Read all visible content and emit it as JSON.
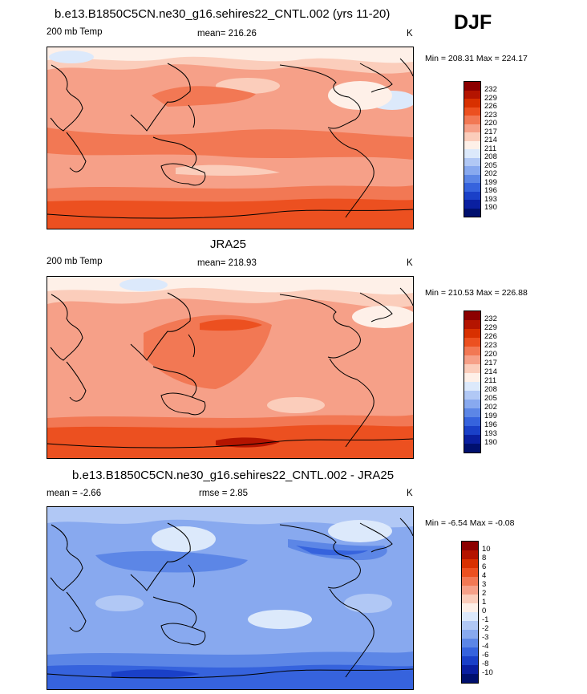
{
  "season": "DJF",
  "panels": [
    {
      "title": "b.e13.B1850C5CN.ne30_g16.sehires22_CNTL.002 (yrs 11-20)",
      "left_label": "200 mb Temp",
      "center_label": "mean= 216.26",
      "units": "K",
      "minmax": "Min = 208.31 Max = 224.17",
      "legend": {
        "labels": [
          "232",
          "229",
          "226",
          "223",
          "220",
          "217",
          "214",
          "211",
          "208",
          "205",
          "202",
          "199",
          "196",
          "193",
          "190"
        ],
        "colors": [
          "#8c0000",
          "#b41400",
          "#d83000",
          "#ec5020",
          "#f27854",
          "#f6a088",
          "#fbcdbb",
          "#fef0e8",
          "#dce9fb",
          "#b1c8f5",
          "#88a9ef",
          "#5c86e6",
          "#3663dd",
          "#1a40c8",
          "#0a1fa0",
          "#00106e"
        ]
      },
      "map_style": "model"
    },
    {
      "title": "JRA25",
      "left_label": "200 mb Temp",
      "center_label": "mean= 218.93",
      "units": "K",
      "minmax": "Min = 210.53 Max = 226.88",
      "legend": {
        "labels": [
          "232",
          "229",
          "226",
          "223",
          "220",
          "217",
          "214",
          "211",
          "208",
          "205",
          "202",
          "199",
          "196",
          "193",
          "190"
        ],
        "colors": [
          "#8c0000",
          "#b41400",
          "#d83000",
          "#ec5020",
          "#f27854",
          "#f6a088",
          "#fbcdbb",
          "#fef0e8",
          "#dce9fb",
          "#b1c8f5",
          "#88a9ef",
          "#5c86e6",
          "#3663dd",
          "#1a40c8",
          "#0a1fa0",
          "#00106e"
        ]
      },
      "map_style": "obs"
    },
    {
      "title": "b.e13.B1850C5CN.ne30_g16.sehires22_CNTL.002 - JRA25",
      "left_label": "mean =  -2.66",
      "center_label": "rmse =   2.85",
      "units": "K",
      "minmax": "Min =  -6.54 Max =  -0.08",
      "legend": {
        "labels": [
          "10",
          "8",
          "6",
          "4",
          "3",
          "2",
          "1",
          "0",
          "-1",
          "-2",
          "-3",
          "-4",
          "-6",
          "-8",
          "-10"
        ],
        "colors": [
          "#8c0000",
          "#b41400",
          "#d83000",
          "#ec5020",
          "#f27854",
          "#f6a088",
          "#fbcdbb",
          "#fef0e8",
          "#dce9fb",
          "#b1c8f5",
          "#88a9ef",
          "#5c86e6",
          "#3663dd",
          "#1a40c8",
          "#0a1fa0",
          "#00106e"
        ]
      },
      "map_style": "diff"
    }
  ]
}
